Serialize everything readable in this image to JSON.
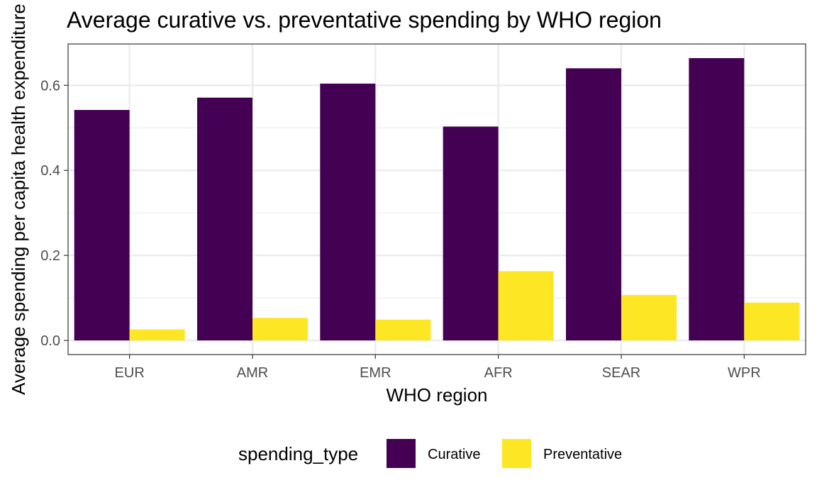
{
  "chart_data": {
    "type": "bar",
    "title": "Average curative vs. preventative spending by WHO region",
    "xlabel": "WHO region",
    "ylabel": "Average spending per capita health expenditure",
    "categories": [
      "EUR",
      "AMR",
      "EMR",
      "AFR",
      "SEAR",
      "WPR"
    ],
    "series": [
      {
        "name": "Curative",
        "color": "#440154",
        "values": [
          0.542,
          0.571,
          0.604,
          0.503,
          0.64,
          0.664
        ]
      },
      {
        "name": "Preventative",
        "color": "#FDE725",
        "values": [
          0.026,
          0.053,
          0.049,
          0.163,
          0.107,
          0.089
        ]
      }
    ],
    "ylim": [
      -0.0332,
      0.6972
    ],
    "yticks": [
      0.0,
      0.2,
      0.4,
      0.6
    ],
    "ytick_labels": [
      "0.0",
      "0.2",
      "0.4",
      "0.6"
    ],
    "grid": true,
    "legend": {
      "title": "spending_type",
      "position": "bottom"
    }
  }
}
